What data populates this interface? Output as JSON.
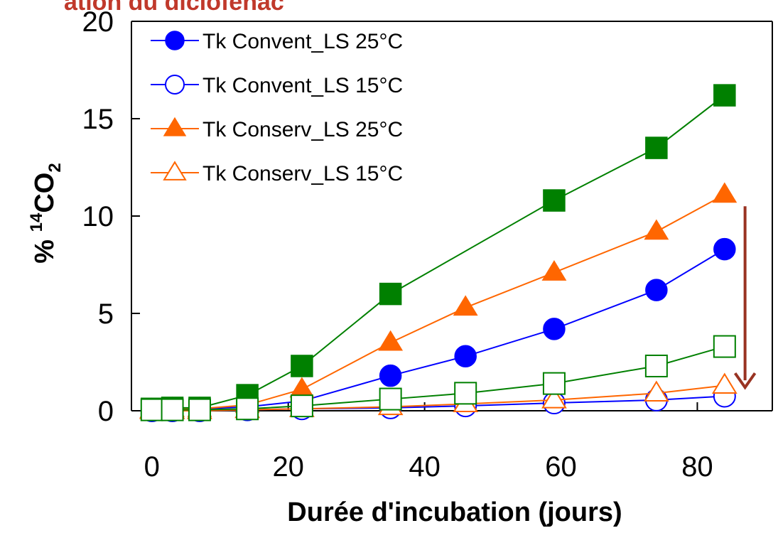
{
  "colors": {
    "blue": "#0000ff",
    "orange": "#ff6600",
    "green": "#008000",
    "arrow": "#993322",
    "title": "#c0392b"
  },
  "page": {
    "top_title": "ation du diclofénac"
  },
  "chart_data": {
    "type": "line",
    "xlabel": "Durée d'incubation (jours)",
    "ylabel_prefix": "% ",
    "ylabel_sup": "14",
    "ylabel_main": "CO",
    "ylabel_sub": "2",
    "xlim": [
      -3,
      91
    ],
    "ylim": [
      0,
      20
    ],
    "xticks": [
      0,
      20,
      40,
      60,
      80
    ],
    "yticks": [
      0,
      5,
      10,
      15,
      20
    ],
    "legend_position": "top-left",
    "series": [
      {
        "name": "Tk Convent_LS 25°C",
        "marker": "circle",
        "filled": true,
        "color": "#0000ff",
        "in_legend": true,
        "x": [
          0,
          3,
          7,
          14,
          22,
          35,
          46,
          59,
          74,
          84
        ],
        "y": [
          0.05,
          0.1,
          0.1,
          0.2,
          0.5,
          1.8,
          2.8,
          4.2,
          6.2,
          8.3
        ]
      },
      {
        "name": "Tk Convent_LS 15°C",
        "marker": "circle",
        "filled": false,
        "color": "#0000ff",
        "in_legend": true,
        "x": [
          0,
          3,
          7,
          14,
          22,
          35,
          46,
          59,
          74,
          84
        ],
        "y": [
          0.0,
          0.0,
          0.0,
          0.05,
          0.1,
          0.15,
          0.25,
          0.4,
          0.55,
          0.75
        ]
      },
      {
        "name": "Tk Conserv_LS 25°C",
        "marker": "triangle",
        "filled": true,
        "color": "#ff6600",
        "in_legend": true,
        "x": [
          0,
          3,
          7,
          14,
          22,
          35,
          46,
          59,
          74,
          84
        ],
        "y": [
          0.05,
          0.1,
          0.1,
          0.3,
          1.1,
          3.5,
          5.3,
          7.1,
          9.2,
          11.1
        ]
      },
      {
        "name": "Tk Conserv_LS 15°C",
        "marker": "triangle",
        "filled": false,
        "color": "#ff6600",
        "in_legend": true,
        "x": [
          0,
          3,
          7,
          14,
          22,
          35,
          46,
          59,
          74,
          84
        ],
        "y": [
          0.0,
          0.0,
          0.0,
          0.05,
          0.1,
          0.2,
          0.35,
          0.55,
          0.9,
          1.3
        ]
      },
      {
        "marker": "square",
        "filled": true,
        "color": "#008000",
        "in_legend": false,
        "x": [
          0,
          3,
          7,
          14,
          22,
          35,
          59,
          74,
          84
        ],
        "y": [
          0.1,
          0.15,
          0.15,
          0.8,
          2.3,
          6.0,
          10.8,
          13.5,
          16.2
        ]
      },
      {
        "marker": "square",
        "filled": false,
        "color": "#008000",
        "in_legend": false,
        "x": [
          0,
          3,
          7,
          14,
          22,
          35,
          46,
          59,
          74,
          84
        ],
        "y": [
          0.05,
          0.05,
          0.05,
          0.1,
          0.25,
          0.6,
          0.9,
          1.4,
          2.3,
          3.3
        ]
      }
    ],
    "annotation": {
      "type": "down-arrow",
      "x": 87,
      "y_from": 10.5,
      "y_to": 1.2,
      "color": "#993322"
    }
  }
}
